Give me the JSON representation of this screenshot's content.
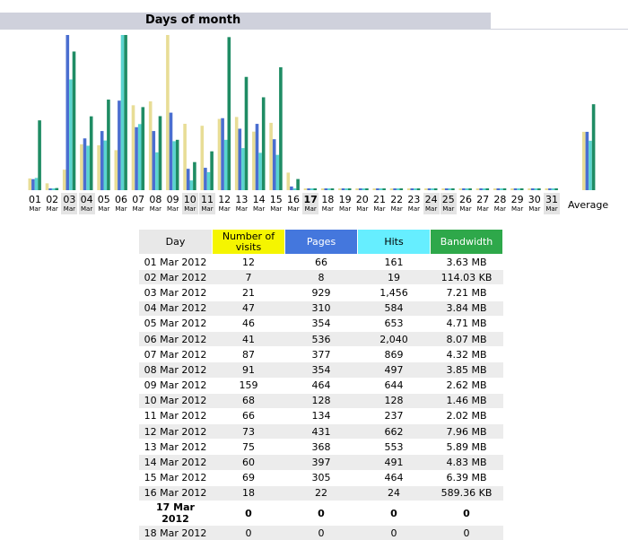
{
  "section_title": "Days of month",
  "average_label": "Average",
  "colors": {
    "visits": "#e8dd96",
    "pages": "#4a6ed0",
    "hits": "#5ad4cf",
    "bandwidth": "#1f8c64",
    "weekend_bg": "#e4e4e4",
    "title_bg": "#cfd1dc"
  },
  "table": {
    "headers": {
      "day": "Day",
      "visits_line1": "Number of",
      "visits_line2": "visits",
      "pages": "Pages",
      "hits": "Hits",
      "bandwidth": "Bandwidth"
    },
    "rows": [
      {
        "day": "01 Mar 2012",
        "visits": "12",
        "pages": "66",
        "hits": "161",
        "bandwidth": "3.63 MB"
      },
      {
        "day": "02 Mar 2012",
        "visits": "7",
        "pages": "8",
        "hits": "19",
        "bandwidth": "114.03 KB"
      },
      {
        "day": "03 Mar 2012",
        "visits": "21",
        "pages": "929",
        "hits": "1,456",
        "bandwidth": "7.21 MB"
      },
      {
        "day": "04 Mar 2012",
        "visits": "47",
        "pages": "310",
        "hits": "584",
        "bandwidth": "3.84 MB"
      },
      {
        "day": "05 Mar 2012",
        "visits": "46",
        "pages": "354",
        "hits": "653",
        "bandwidth": "4.71 MB"
      },
      {
        "day": "06 Mar 2012",
        "visits": "41",
        "pages": "536",
        "hits": "2,040",
        "bandwidth": "8.07 MB"
      },
      {
        "day": "07 Mar 2012",
        "visits": "87",
        "pages": "377",
        "hits": "869",
        "bandwidth": "4.32 MB"
      },
      {
        "day": "08 Mar 2012",
        "visits": "91",
        "pages": "354",
        "hits": "497",
        "bandwidth": "3.85 MB"
      },
      {
        "day": "09 Mar 2012",
        "visits": "159",
        "pages": "464",
        "hits": "644",
        "bandwidth": "2.62 MB"
      },
      {
        "day": "10 Mar 2012",
        "visits": "68",
        "pages": "128",
        "hits": "128",
        "bandwidth": "1.46 MB"
      },
      {
        "day": "11 Mar 2012",
        "visits": "66",
        "pages": "134",
        "hits": "237",
        "bandwidth": "2.02 MB"
      },
      {
        "day": "12 Mar 2012",
        "visits": "73",
        "pages": "431",
        "hits": "662",
        "bandwidth": "7.96 MB"
      },
      {
        "day": "13 Mar 2012",
        "visits": "75",
        "pages": "368",
        "hits": "553",
        "bandwidth": "5.89 MB"
      },
      {
        "day": "14 Mar 2012",
        "visits": "60",
        "pages": "397",
        "hits": "491",
        "bandwidth": "4.83 MB"
      },
      {
        "day": "15 Mar 2012",
        "visits": "69",
        "pages": "305",
        "hits": "464",
        "bandwidth": "6.39 MB"
      },
      {
        "day": "16 Mar 2012",
        "visits": "18",
        "pages": "22",
        "hits": "24",
        "bandwidth": "589.36 KB"
      },
      {
        "day": "17 Mar 2012",
        "visits": "0",
        "pages": "0",
        "hits": "0",
        "bandwidth": "0"
      },
      {
        "day": "18 Mar 2012",
        "visits": "0",
        "pages": "0",
        "hits": "0",
        "bandwidth": "0"
      }
    ]
  },
  "chart_data": {
    "type": "bar",
    "categories": [
      "01",
      "02",
      "03",
      "04",
      "05",
      "06",
      "07",
      "08",
      "09",
      "10",
      "11",
      "12",
      "13",
      "14",
      "15",
      "16",
      "17",
      "18",
      "19",
      "20",
      "21",
      "22",
      "23",
      "24",
      "25",
      "26",
      "27",
      "28",
      "29",
      "30",
      "31"
    ],
    "month_label": "Mar",
    "weekend_days": [
      "03",
      "04",
      "10",
      "11",
      "17",
      "24",
      "25",
      "31"
    ],
    "today": "17",
    "series": [
      {
        "key": "visits",
        "values": [
          12,
          7,
          21,
          47,
          46,
          41,
          87,
          91,
          159,
          68,
          66,
          73,
          75,
          60,
          69,
          18,
          0,
          0,
          0,
          0,
          0,
          0,
          0,
          0,
          0,
          0,
          0,
          0,
          0,
          0,
          0
        ]
      },
      {
        "key": "pages",
        "values": [
          66,
          8,
          929,
          310,
          354,
          536,
          377,
          354,
          464,
          128,
          134,
          431,
          368,
          397,
          305,
          22,
          0,
          0,
          0,
          0,
          0,
          0,
          0,
          0,
          0,
          0,
          0,
          0,
          0,
          0,
          0
        ]
      },
      {
        "key": "hits",
        "values": [
          161,
          19,
          1456,
          584,
          653,
          2040,
          869,
          497,
          644,
          128,
          237,
          662,
          553,
          491,
          464,
          24,
          0,
          0,
          0,
          0,
          0,
          0,
          0,
          0,
          0,
          0,
          0,
          0,
          0,
          0,
          0
        ]
      },
      {
        "key": "bandwidth_mb",
        "values": [
          3.63,
          0.11,
          7.21,
          3.84,
          4.71,
          8.07,
          4.32,
          3.85,
          2.62,
          1.46,
          2.02,
          7.96,
          5.89,
          4.83,
          6.39,
          0.58,
          0,
          0,
          0,
          0,
          0,
          0,
          0,
          0,
          0,
          0,
          0,
          0,
          0,
          0,
          0
        ]
      }
    ],
    "average": {
      "visits": 59.8,
      "pages": 349.3,
      "hits": 649.9,
      "bandwidth_mb": 4.47
    },
    "grid": false,
    "legend": "none"
  }
}
